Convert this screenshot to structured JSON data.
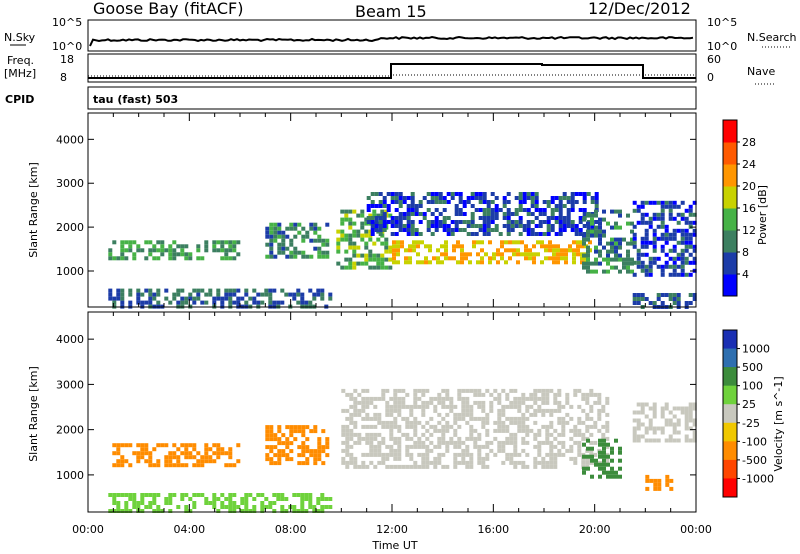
{
  "header": {
    "station": "Goose Bay (fitACF)",
    "beam": "Beam 15",
    "date": "12/Dec/2012"
  },
  "noise_panel": {
    "left_label": "N.Sky",
    "right_label": "N.Search",
    "left_ticks": [
      "10^5",
      "10^0"
    ],
    "right_ticks": [
      "10^5",
      "10^0"
    ]
  },
  "freq_panel": {
    "left_label_1": "Freq.",
    "left_label_2": "[MHz]",
    "right_label": "Nave",
    "left_ticks": [
      "18",
      "8"
    ],
    "right_ticks": [
      "60",
      "0"
    ]
  },
  "cpid": {
    "label": "CPID",
    "value": "tau (fast) 503"
  },
  "chart_data": [
    {
      "type": "heatmap",
      "title": "Power",
      "ylabel": "Slant Range [km]",
      "xlabel": "Time UT",
      "x_ticks": [
        "00:00",
        "04:00",
        "08:00",
        "12:00",
        "16:00",
        "20:00",
        "00:00"
      ],
      "x_range_hours": [
        0,
        24
      ],
      "y_ticks": [
        1000,
        2000,
        3000,
        4000
      ],
      "ylim": [
        180,
        4600
      ],
      "colorbar": {
        "label": "Power [dB]",
        "ticks": [
          "4",
          "8",
          "12",
          "16",
          "20",
          "24",
          "28"
        ],
        "colors": [
          "#0000ff",
          "#1c3ca8",
          "#3c7f60",
          "#46b246",
          "#c8d200",
          "#ff9600",
          "#ff5a00",
          "#ff0000"
        ]
      },
      "regions": [
        {
          "t": [
            0.8,
            6.0
          ],
          "r": [
            1250,
            1700
          ],
          "value": 12
        },
        {
          "t": [
            0.8,
            9.5
          ],
          "r": [
            200,
            600
          ],
          "value": 8
        },
        {
          "t": [
            7.0,
            9.5
          ],
          "r": [
            1300,
            2100
          ],
          "value": 10
        },
        {
          "t": [
            9.8,
            12.0
          ],
          "r": [
            1050,
            2400
          ],
          "value": 14
        },
        {
          "t": [
            12.0,
            19.8
          ],
          "r": [
            1200,
            1700
          ],
          "value": 20
        },
        {
          "t": [
            11.0,
            20.0
          ],
          "r": [
            1800,
            2800
          ],
          "value": 6
        },
        {
          "t": [
            19.5,
            21.5
          ],
          "r": [
            1000,
            2400
          ],
          "value": 10
        },
        {
          "t": [
            21.5,
            24.0
          ],
          "r": [
            900,
            2600
          ],
          "value": 6
        },
        {
          "t": [
            21.5,
            24.0
          ],
          "r": [
            200,
            500
          ],
          "value": 8
        }
      ]
    },
    {
      "type": "heatmap",
      "title": "Velocity",
      "ylabel": "Slant Range [km]",
      "xlabel": "Time UT",
      "x_ticks": [
        "00:00",
        "04:00",
        "08:00",
        "12:00",
        "16:00",
        "20:00",
        "00:00"
      ],
      "x_range_hours": [
        0,
        24
      ],
      "y_ticks": [
        1000,
        2000,
        3000,
        4000
      ],
      "ylim": [
        180,
        4600
      ],
      "colorbar": {
        "label": "Velocity [m s^-1]",
        "ticks": [
          "1000",
          "500",
          "100",
          "25",
          "-25",
          "-100",
          "-500",
          "-1000"
        ],
        "colors": [
          "#1a2fb3",
          "#2e6fb0",
          "#3c8c3c",
          "#6fd23c",
          "#c8c8be",
          "#f0c800",
          "#ff8c00",
          "#ff4600",
          "#ff0000"
        ]
      },
      "regions": [
        {
          "t": [
            0.8,
            6.0
          ],
          "r": [
            1250,
            1700
          ],
          "value": -200
        },
        {
          "t": [
            0.8,
            9.5
          ],
          "r": [
            200,
            600
          ],
          "value": 50
        },
        {
          "t": [
            7.0,
            9.5
          ],
          "r": [
            1300,
            2100
          ],
          "value": -200
        },
        {
          "t": [
            10.0,
            20.5
          ],
          "r": [
            1200,
            2900
          ],
          "value": 0
        },
        {
          "t": [
            19.5,
            21.0
          ],
          "r": [
            1000,
            1800
          ],
          "value": 150
        },
        {
          "t": [
            21.5,
            24.0
          ],
          "r": [
            1800,
            2600
          ],
          "value": 0
        },
        {
          "t": [
            22.0,
            23.0
          ],
          "r": [
            700,
            1000
          ],
          "value": -200
        }
      ]
    }
  ]
}
